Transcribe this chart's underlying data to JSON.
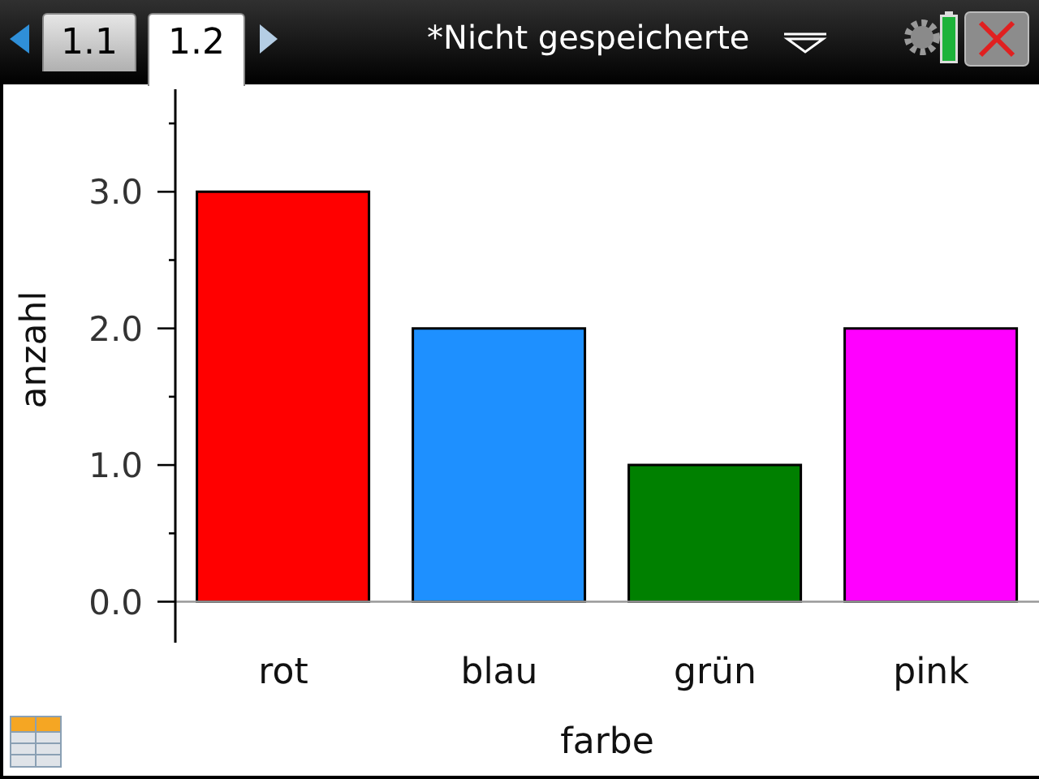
{
  "chart_data": {
    "type": "bar",
    "xlabel": "farbe",
    "ylabel": "anzahl",
    "categories": [
      "rot",
      "blau",
      "grün",
      "pink"
    ],
    "values": [
      3,
      2,
      1,
      2
    ],
    "colors": [
      "#ff0000",
      "#1e90ff",
      "#008000",
      "#ff00ff"
    ],
    "ylim": [
      -0.3,
      3.75
    ],
    "yticks": [
      {
        "value": 0,
        "label": "0.0"
      },
      {
        "value": 0.5,
        "label": null
      },
      {
        "value": 1,
        "label": "1.0"
      },
      {
        "value": 1.5,
        "label": null
      },
      {
        "value": 2,
        "label": "2.0"
      },
      {
        "value": 2.5,
        "label": null
      },
      {
        "value": 3,
        "label": "3.0"
      },
      {
        "value": 3.5,
        "label": null
      }
    ],
    "grid": false,
    "legend": false,
    "annotations": [
      "1.1",
      "1.2",
      "*Nicht gespeicherte"
    ]
  }
}
